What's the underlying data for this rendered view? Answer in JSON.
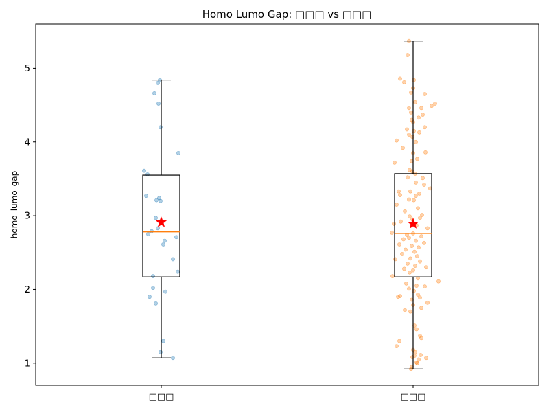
{
  "chart_data": {
    "type": "box",
    "title": "Homo Lumo Gap: □□□ vs □□□",
    "xlabel": "",
    "ylabel": "homo_lumo_gap",
    "ylim": [
      0.7,
      5.6
    ],
    "yticks": [
      1,
      2,
      3,
      4,
      5
    ],
    "grid": false,
    "legend": "none",
    "categories": [
      "□□□",
      "□□□"
    ],
    "colors": {
      "group_a": "#1f77b4",
      "group_b": "#ff7f0e",
      "median": "#ff7f0e",
      "mean_marker": "#ff0000"
    },
    "boxes": [
      {
        "category": "□□□",
        "min": 1.07,
        "q1": 2.17,
        "median": 2.78,
        "q3": 3.55,
        "max": 4.84,
        "mean": 2.91
      },
      {
        "category": "□□□",
        "min": 0.92,
        "q1": 2.17,
        "median": 2.76,
        "q3": 3.57,
        "max": 5.37,
        "mean": 2.89
      }
    ],
    "points": [
      [
        [
          -0.02,
          4.84
        ],
        [
          -0.05,
          4.8
        ],
        [
          -0.1,
          4.66
        ],
        [
          -0.04,
          4.52
        ],
        [
          -0.01,
          4.2
        ],
        [
          0.25,
          3.85
        ],
        [
          -0.25,
          3.61
        ],
        [
          -0.2,
          3.56
        ],
        [
          -0.22,
          3.27
        ],
        [
          -0.03,
          3.24
        ],
        [
          -0.07,
          3.21
        ],
        [
          -0.01,
          3.2
        ],
        [
          -0.08,
          2.97
        ],
        [
          -0.02,
          2.92
        ],
        [
          -0.05,
          2.83
        ],
        [
          -0.14,
          2.79
        ],
        [
          -0.19,
          2.75
        ],
        [
          0.22,
          2.71
        ],
        [
          0.05,
          2.66
        ],
        [
          0.03,
          2.61
        ],
        [
          0.17,
          2.41
        ],
        [
          0.24,
          2.24
        ],
        [
          -0.12,
          2.18
        ],
        [
          -0.12,
          2.02
        ],
        [
          0.06,
          1.97
        ],
        [
          -0.17,
          1.9
        ],
        [
          -0.08,
          1.81
        ],
        [
          0.03,
          1.3
        ],
        [
          -0.01,
          1.15
        ],
        [
          0.17,
          1.07
        ]
      ],
      [
        [
          -0.06,
          5.37
        ],
        [
          -0.08,
          5.18
        ],
        [
          -0.19,
          4.86
        ],
        [
          -0.13,
          4.81
        ],
        [
          0.01,
          4.84
        ],
        [
          0.0,
          4.73
        ],
        [
          -0.03,
          4.67
        ],
        [
          0.17,
          4.65
        ],
        [
          0.03,
          4.54
        ],
        [
          0.32,
          4.52
        ],
        [
          0.27,
          4.49
        ],
        [
          -0.06,
          4.46
        ],
        [
          0.12,
          4.46
        ],
        [
          -0.03,
          4.4
        ],
        [
          0.14,
          4.37
        ],
        [
          0.08,
          4.33
        ],
        [
          -0.02,
          4.3
        ],
        [
          0.0,
          4.27
        ],
        [
          0.17,
          4.2
        ],
        [
          -0.09,
          4.17
        ],
        [
          0.01,
          4.15
        ],
        [
          0.09,
          4.13
        ],
        [
          -0.06,
          4.1
        ],
        [
          -0.01,
          4.07
        ],
        [
          -0.24,
          4.02
        ],
        [
          0.04,
          4.0
        ],
        [
          -0.15,
          3.92
        ],
        [
          0.18,
          3.86
        ],
        [
          0.0,
          3.85
        ],
        [
          0.06,
          3.77
        ],
        [
          -0.02,
          3.74
        ],
        [
          -0.27,
          3.72
        ],
        [
          -0.05,
          3.62
        ],
        [
          -0.01,
          3.6
        ],
        [
          0.03,
          3.57
        ],
        [
          -0.08,
          3.52
        ],
        [
          0.14,
          3.51
        ],
        [
          0.04,
          3.45
        ],
        [
          0.16,
          3.42
        ],
        [
          0.25,
          3.37
        ],
        [
          -0.21,
          3.33
        ],
        [
          -0.04,
          3.33
        ],
        [
          0.09,
          3.3
        ],
        [
          -0.19,
          3.28
        ],
        [
          0.04,
          3.27
        ],
        [
          -0.06,
          3.22
        ],
        [
          0.01,
          3.21
        ],
        [
          -0.24,
          3.15
        ],
        [
          0.07,
          3.1
        ],
        [
          -0.12,
          3.06
        ],
        [
          0.13,
          3.01
        ],
        [
          -0.05,
          2.99
        ],
        [
          0.1,
          2.97
        ],
        [
          -0.01,
          2.95
        ],
        [
          -0.18,
          2.92
        ],
        [
          -0.28,
          2.89
        ],
        [
          0.05,
          2.87
        ],
        [
          0.21,
          2.83
        ],
        [
          -0.31,
          2.77
        ],
        [
          0.0,
          2.76
        ],
        [
          -0.09,
          2.74
        ],
        [
          0.12,
          2.72
        ],
        [
          -0.06,
          2.7
        ],
        [
          -0.14,
          2.68
        ],
        [
          0.04,
          2.66
        ],
        [
          0.16,
          2.63
        ],
        [
          -0.2,
          2.61
        ],
        [
          -0.02,
          2.59
        ],
        [
          0.08,
          2.57
        ],
        [
          -0.11,
          2.54
        ],
        [
          0.02,
          2.51
        ],
        [
          -0.16,
          2.48
        ],
        [
          0.06,
          2.45
        ],
        [
          -0.04,
          2.42
        ],
        [
          -0.26,
          2.41
        ],
        [
          0.1,
          2.38
        ],
        [
          -0.08,
          2.35
        ],
        [
          0.03,
          2.32
        ],
        [
          0.19,
          2.3
        ],
        [
          -0.13,
          2.28
        ],
        [
          0.0,
          2.26
        ],
        [
          -0.05,
          2.23
        ],
        [
          -0.3,
          2.18
        ],
        [
          0.07,
          2.15
        ],
        [
          0.37,
          2.11
        ],
        [
          -0.1,
          2.08
        ],
        [
          0.05,
          2.05
        ],
        [
          0.17,
          2.04
        ],
        [
          -0.06,
          2.01
        ],
        [
          0.01,
          1.98
        ],
        [
          -0.19,
          1.91
        ],
        [
          -0.22,
          1.9
        ],
        [
          0.07,
          1.93
        ],
        [
          0.1,
          1.89
        ],
        [
          -0.02,
          1.86
        ],
        [
          0.21,
          1.82
        ],
        [
          0.0,
          1.79
        ],
        [
          -0.12,
          1.72
        ],
        [
          0.12,
          1.75
        ],
        [
          -0.04,
          1.7
        ],
        [
          0.02,
          1.51
        ],
        [
          0.1,
          1.37
        ],
        [
          0.12,
          1.34
        ],
        [
          -0.2,
          1.3
        ],
        [
          0.05,
          1.46
        ],
        [
          -0.24,
          1.23
        ],
        [
          0.0,
          1.18
        ],
        [
          0.03,
          1.15
        ],
        [
          0.02,
          1.1
        ],
        [
          0.11,
          1.11
        ],
        [
          -0.01,
          1.08
        ],
        [
          0.08,
          1.05
        ],
        [
          0.19,
          1.07
        ],
        [
          0.05,
          1.01
        ],
        [
          0.06,
          1.0
        ],
        [
          -0.02,
          0.95
        ],
        [
          -0.03,
          0.92
        ]
      ]
    ]
  }
}
